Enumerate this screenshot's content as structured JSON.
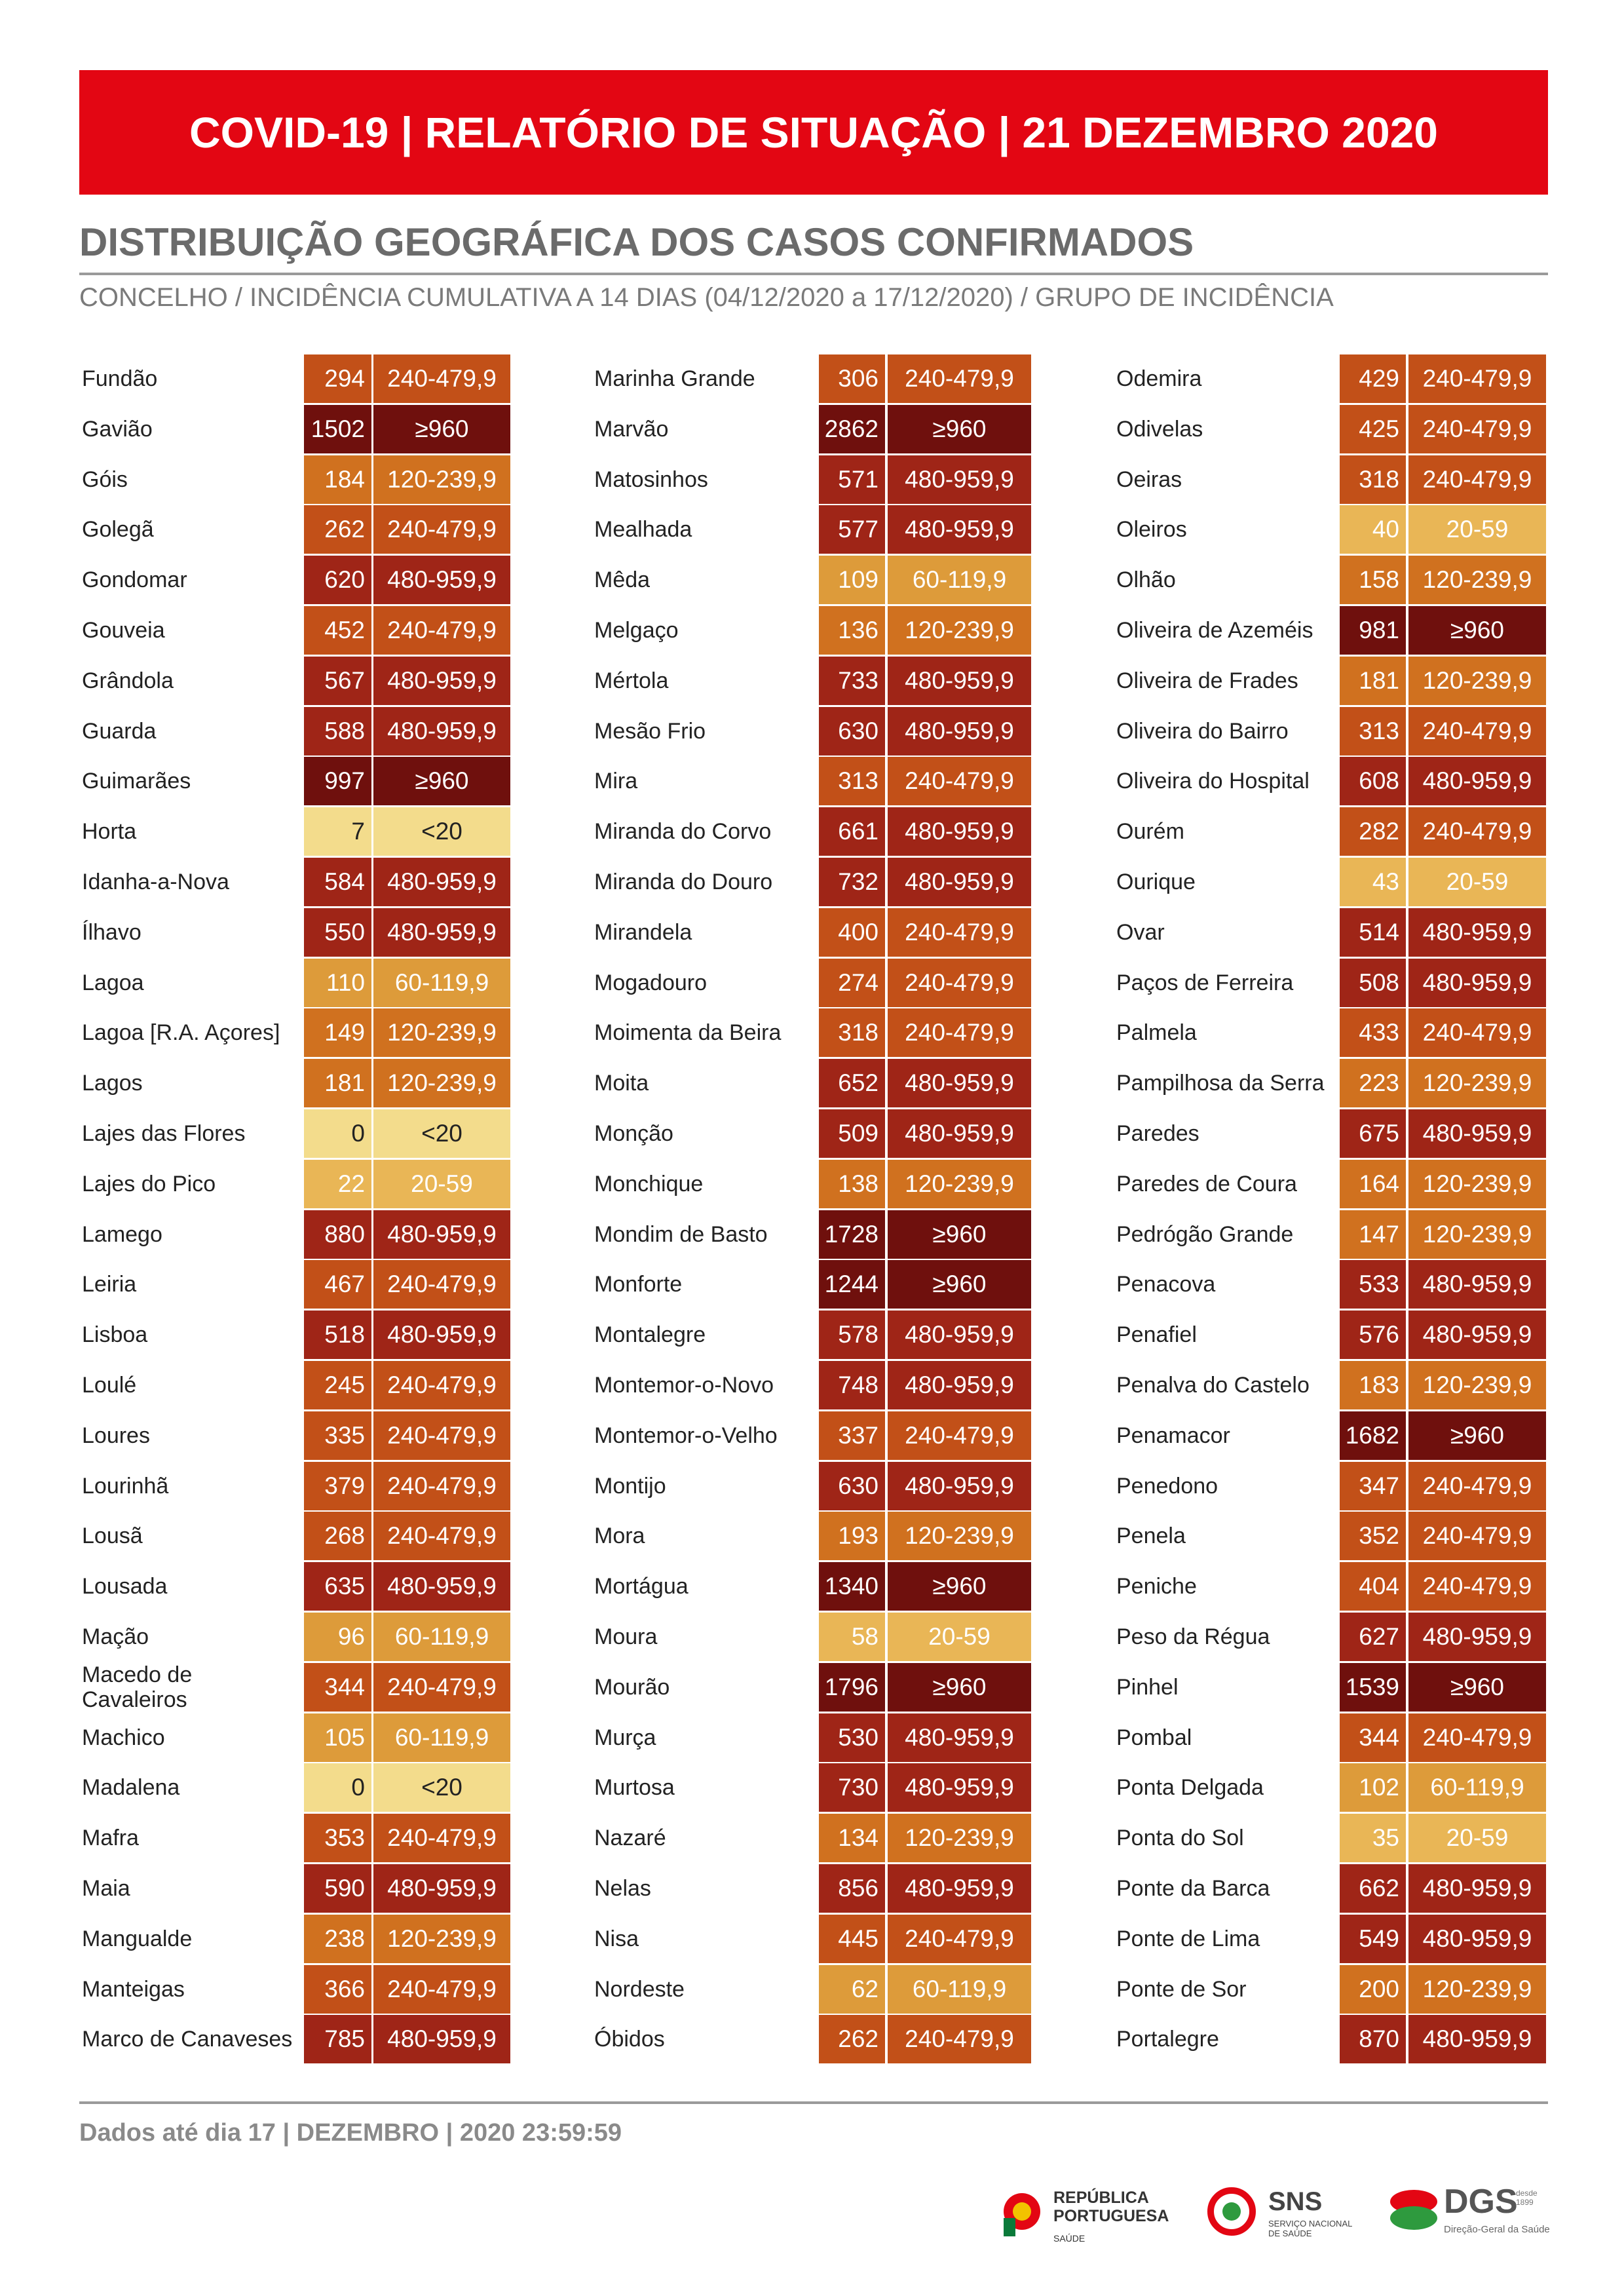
{
  "header": {
    "title": "COVID-19 | RELATÓRIO DE SITUAÇÃO | 21 DEZEMBRO 2020",
    "section_title": "DISTRIBUIÇÃO GEOGRÁFICA DOS CASOS CONFIRMADOS",
    "subtitle": "CONCELHO / INCIDÊNCIA CUMULATIVA A 14 DIAS (04/12/2020 a 17/12/2020) / GRUPO DE INCIDÊNCIA"
  },
  "group_colors": {
    "<20": "#f3dc8c",
    "20-59": "#e9b656",
    "60-119,9": "#dd9b3a",
    "120-239,9": "#d0711f",
    "240-479,9": "#c25018",
    "480-959,9": "#9f2517",
    "≥960": "#6f100d"
  },
  "columns": [
    {
      "rows": [
        [
          "Fundão",
          294,
          "240-479,9"
        ],
        [
          "Gavião",
          1502,
          "≥960"
        ],
        [
          "Góis",
          184,
          "120-239,9"
        ],
        [
          "Golegã",
          262,
          "240-479,9"
        ],
        [
          "Gondomar",
          620,
          "480-959,9"
        ],
        [
          "Gouveia",
          452,
          "240-479,9"
        ],
        [
          "Grândola",
          567,
          "480-959,9"
        ],
        [
          "Guarda",
          588,
          "480-959,9"
        ],
        [
          "Guimarães",
          997,
          "≥960"
        ],
        [
          "Horta",
          7,
          "<20"
        ],
        [
          "Idanha-a-Nova",
          584,
          "480-959,9"
        ],
        [
          "Ílhavo",
          550,
          "480-959,9"
        ],
        [
          "Lagoa",
          110,
          "60-119,9"
        ],
        [
          "Lagoa [R.A. Açores]",
          149,
          "120-239,9"
        ],
        [
          "Lagos",
          181,
          "120-239,9"
        ],
        [
          "Lajes das Flores",
          0,
          "<20"
        ],
        [
          "Lajes do Pico",
          22,
          "20-59"
        ],
        [
          "Lamego",
          880,
          "480-959,9"
        ],
        [
          "Leiria",
          467,
          "240-479,9"
        ],
        [
          "Lisboa",
          518,
          "480-959,9"
        ],
        [
          "Loulé",
          245,
          "240-479,9"
        ],
        [
          "Loures",
          335,
          "240-479,9"
        ],
        [
          "Lourinhã",
          379,
          "240-479,9"
        ],
        [
          "Lousã",
          268,
          "240-479,9"
        ],
        [
          "Lousada",
          635,
          "480-959,9"
        ],
        [
          "Mação",
          96,
          "60-119,9"
        ],
        [
          "Macedo de Cavaleiros",
          344,
          "240-479,9"
        ],
        [
          "Machico",
          105,
          "60-119,9"
        ],
        [
          "Madalena",
          0,
          "<20"
        ],
        [
          "Mafra",
          353,
          "240-479,9"
        ],
        [
          "Maia",
          590,
          "480-959,9"
        ],
        [
          "Mangualde",
          238,
          "120-239,9"
        ],
        [
          "Manteigas",
          366,
          "240-479,9"
        ],
        [
          "Marco de Canaveses",
          785,
          "480-959,9"
        ]
      ]
    },
    {
      "rows": [
        [
          "Marinha Grande",
          306,
          "240-479,9"
        ],
        [
          "Marvão",
          2862,
          "≥960"
        ],
        [
          "Matosinhos",
          571,
          "480-959,9"
        ],
        [
          "Mealhada",
          577,
          "480-959,9"
        ],
        [
          "Mêda",
          109,
          "60-119,9"
        ],
        [
          "Melgaço",
          136,
          "120-239,9"
        ],
        [
          "Mértola",
          733,
          "480-959,9"
        ],
        [
          "Mesão Frio",
          630,
          "480-959,9"
        ],
        [
          "Mira",
          313,
          "240-479,9"
        ],
        [
          "Miranda do Corvo",
          661,
          "480-959,9"
        ],
        [
          "Miranda do Douro",
          732,
          "480-959,9"
        ],
        [
          "Mirandela",
          400,
          "240-479,9"
        ],
        [
          "Mogadouro",
          274,
          "240-479,9"
        ],
        [
          "Moimenta da Beira",
          318,
          "240-479,9"
        ],
        [
          "Moita",
          652,
          "480-959,9"
        ],
        [
          "Monção",
          509,
          "480-959,9"
        ],
        [
          "Monchique",
          138,
          "120-239,9"
        ],
        [
          "Mondim de Basto",
          1728,
          "≥960"
        ],
        [
          "Monforte",
          1244,
          "≥960"
        ],
        [
          "Montalegre",
          578,
          "480-959,9"
        ],
        [
          "Montemor-o-Novo",
          748,
          "480-959,9"
        ],
        [
          "Montemor-o-Velho",
          337,
          "240-479,9"
        ],
        [
          "Montijo",
          630,
          "480-959,9"
        ],
        [
          "Mora",
          193,
          "120-239,9"
        ],
        [
          "Mortágua",
          1340,
          "≥960"
        ],
        [
          "Moura",
          58,
          "20-59"
        ],
        [
          "Mourão",
          1796,
          "≥960"
        ],
        [
          "Murça",
          530,
          "480-959,9"
        ],
        [
          "Murtosa",
          730,
          "480-959,9"
        ],
        [
          "Nazaré",
          134,
          "120-239,9"
        ],
        [
          "Nelas",
          856,
          "480-959,9"
        ],
        [
          "Nisa",
          445,
          "240-479,9"
        ],
        [
          "Nordeste",
          62,
          "60-119,9"
        ],
        [
          "Óbidos",
          262,
          "240-479,9"
        ]
      ]
    },
    {
      "rows": [
        [
          "Odemira",
          429,
          "240-479,9"
        ],
        [
          "Odivelas",
          425,
          "240-479,9"
        ],
        [
          "Oeiras",
          318,
          "240-479,9"
        ],
        [
          "Oleiros",
          40,
          "20-59"
        ],
        [
          "Olhão",
          158,
          "120-239,9"
        ],
        [
          "Oliveira de Azeméis",
          981,
          "≥960"
        ],
        [
          "Oliveira de Frades",
          181,
          "120-239,9"
        ],
        [
          "Oliveira do Bairro",
          313,
          "240-479,9"
        ],
        [
          "Oliveira do Hospital",
          608,
          "480-959,9"
        ],
        [
          "Ourém",
          282,
          "240-479,9"
        ],
        [
          "Ourique",
          43,
          "20-59"
        ],
        [
          "Ovar",
          514,
          "480-959,9"
        ],
        [
          "Paços de Ferreira",
          508,
          "480-959,9"
        ],
        [
          "Palmela",
          433,
          "240-479,9"
        ],
        [
          "Pampilhosa da Serra",
          223,
          "120-239,9"
        ],
        [
          "Paredes",
          675,
          "480-959,9"
        ],
        [
          "Paredes de Coura",
          164,
          "120-239,9"
        ],
        [
          "Pedrógão Grande",
          147,
          "120-239,9"
        ],
        [
          "Penacova",
          533,
          "480-959,9"
        ],
        [
          "Penafiel",
          576,
          "480-959,9"
        ],
        [
          "Penalva do Castelo",
          183,
          "120-239,9"
        ],
        [
          "Penamacor",
          1682,
          "≥960"
        ],
        [
          "Penedono",
          347,
          "240-479,9"
        ],
        [
          "Penela",
          352,
          "240-479,9"
        ],
        [
          "Peniche",
          404,
          "240-479,9"
        ],
        [
          "Peso da Régua",
          627,
          "480-959,9"
        ],
        [
          "Pinhel",
          1539,
          "≥960"
        ],
        [
          "Pombal",
          344,
          "240-479,9"
        ],
        [
          "Ponta Delgada",
          102,
          "60-119,9"
        ],
        [
          "Ponta do Sol",
          35,
          "20-59"
        ],
        [
          "Ponte da Barca",
          662,
          "480-959,9"
        ],
        [
          "Ponte de Lima",
          549,
          "480-959,9"
        ],
        [
          "Ponte de Sor",
          200,
          "120-239,9"
        ],
        [
          "Portalegre",
          870,
          "480-959,9"
        ]
      ]
    }
  ],
  "footer": {
    "text": "Dados até dia 17 | DEZEMBRO | 2020 23:59:59",
    "logos": {
      "republica": "REPÚBLICA PORTUGUESA",
      "saude": "SAÚDE",
      "sns": "SNS",
      "sns_sub": "SERVIÇO NACIONAL DE SAÚDE",
      "dgs": "DGS",
      "dgs_since": "desde 1899",
      "dgs_sub": "Direção-Geral da Saúde"
    }
  }
}
